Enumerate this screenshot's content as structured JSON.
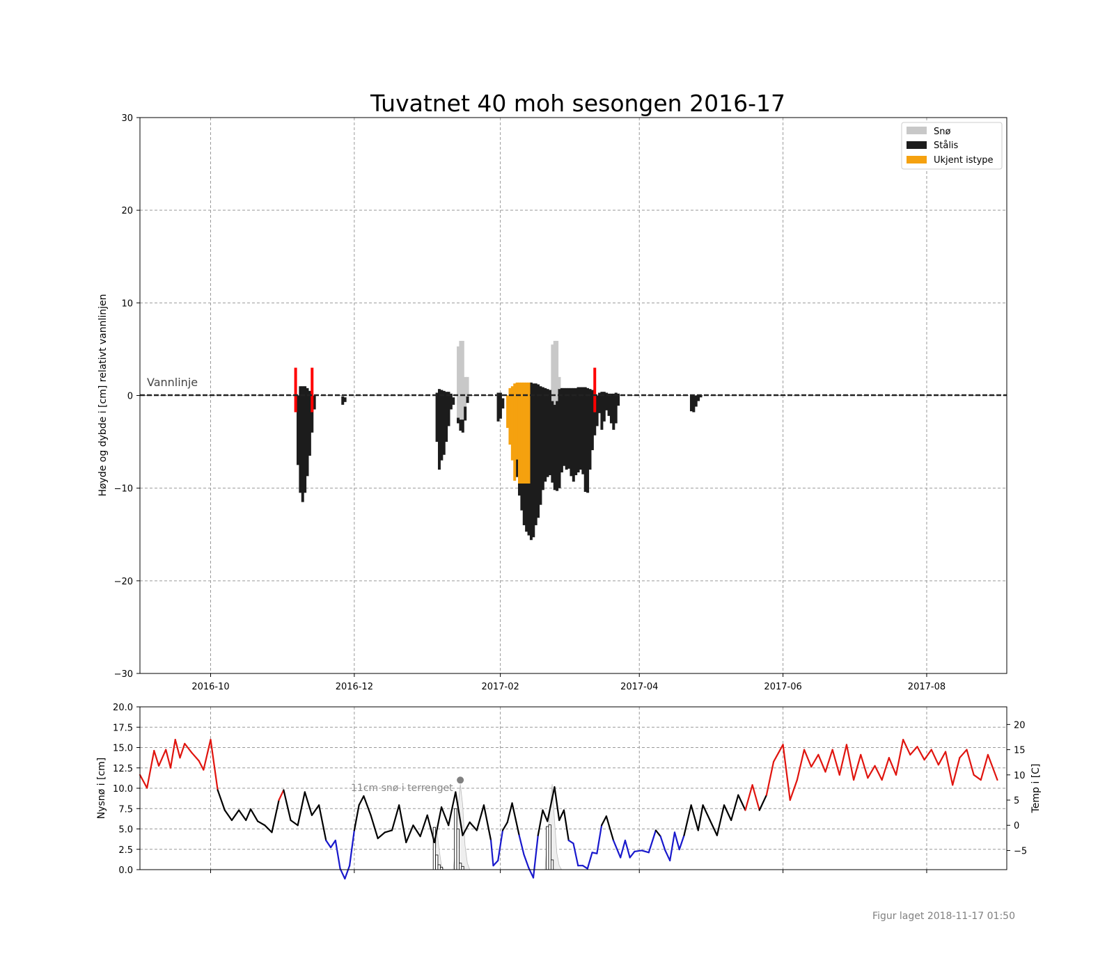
{
  "title": "Tuvatnet 40 moh sesongen 2016-17",
  "footer": "Figur laget 2018-11-17 01:50",
  "colors": {
    "snow": "#c8c8c8",
    "ice": "#1c1c1c",
    "unknown": "#f5a10f",
    "slush": "#ff0000",
    "temp_warm": "#e0140e",
    "temp_cold": "#1818cc",
    "temp_mid": "#000000",
    "grid": "#999999"
  },
  "chart_data": [
    {
      "type": "bar",
      "ylabel": "Høyde og dybde i [cm] relativt vannlinjen",
      "ylim": [
        -30,
        30
      ],
      "yticks": [
        30,
        20,
        10,
        0,
        -10,
        -20,
        -30
      ],
      "ytick_labels": [
        "30",
        "20",
        "10",
        "0",
        "−10",
        "−20",
        "−30"
      ],
      "xlim": [
        "2016-09-01",
        "2017-09-04"
      ],
      "xticks": [
        "2016-10-01",
        "2016-12-01",
        "2017-02-01",
        "2017-04-01",
        "2017-06-01",
        "2017-08-01"
      ],
      "xtick_labels": [
        "2016-10",
        "2016-12",
        "2017-02",
        "2017-04",
        "2017-06",
        "2017-08"
      ],
      "annotation": "Vannlinje",
      "legend": {
        "position": "top-right",
        "items": [
          {
            "label": "Snø",
            "color": "#c8c8c8"
          },
          {
            "label": "Stålis",
            "color": "#1c1c1c"
          },
          {
            "label": "Ukjent istype",
            "color": "#f5a10f"
          }
        ]
      },
      "grid": true,
      "ice": [
        [
          "2016-11-07",
          0.0,
          -7.5
        ],
        [
          "2016-11-08",
          1.0,
          -10.5
        ],
        [
          "2016-11-09",
          1.0,
          -11.5
        ],
        [
          "2016-11-10",
          1.0,
          -10.5
        ],
        [
          "2016-11-11",
          0.8,
          -8.7
        ],
        [
          "2016-11-12",
          0.5,
          -6.5
        ],
        [
          "2016-11-13",
          0.0,
          -4.0
        ],
        [
          "2016-11-14",
          0.0,
          -1.5
        ],
        [
          "2016-11-26",
          -0.1,
          -1.0
        ],
        [
          "2016-11-27",
          -0.2,
          -0.7
        ],
        [
          "2017-01-05",
          0.3,
          -5.0
        ],
        [
          "2017-01-06",
          0.7,
          -8.0
        ],
        [
          "2017-01-07",
          0.6,
          -7.0
        ],
        [
          "2017-01-08",
          0.5,
          -6.4
        ],
        [
          "2017-01-09",
          0.4,
          -5.0
        ],
        [
          "2017-01-10",
          0.4,
          -3.3
        ],
        [
          "2017-01-11",
          0.2,
          -1.5
        ],
        [
          "2017-01-12",
          -0.2,
          -1.0
        ],
        [
          "2017-01-14",
          -2.4,
          -3.0
        ],
        [
          "2017-01-15",
          -2.6,
          -3.8
        ],
        [
          "2017-01-16",
          -2.6,
          -4.0
        ],
        [
          "2017-01-17",
          -1.2,
          -2.7
        ],
        [
          "2017-01-18",
          -0.1,
          -0.8
        ],
        [
          "2017-01-31",
          0.3,
          -2.8
        ],
        [
          "2017-02-01",
          0.3,
          -2.5
        ],
        [
          "2017-02-02",
          -0.3,
          -1.4
        ],
        [
          "2017-02-08",
          -6.9,
          -8.8
        ],
        [
          "2017-02-09",
          -9.5,
          -10.8
        ],
        [
          "2017-02-10",
          -9.5,
          -12.4
        ],
        [
          "2017-02-11",
          -9.5,
          -14.0
        ],
        [
          "2017-02-12",
          -9.5,
          -14.7
        ],
        [
          "2017-02-13",
          -9.5,
          -15.1
        ],
        [
          "2017-02-14",
          1.4,
          -15.6
        ],
        [
          "2017-02-15",
          1.3,
          -15.3
        ],
        [
          "2017-02-16",
          1.3,
          -14.0
        ],
        [
          "2017-02-17",
          1.2,
          -13.2
        ],
        [
          "2017-02-18",
          1.0,
          -11.8
        ],
        [
          "2017-02-19",
          0.9,
          -10.2
        ],
        [
          "2017-02-20",
          0.8,
          -9.3
        ],
        [
          "2017-02-21",
          0.7,
          -8.8
        ],
        [
          "2017-02-22",
          0.6,
          -8.6
        ],
        [
          "2017-02-23",
          -0.6,
          -9.4
        ],
        [
          "2017-02-24",
          -1.0,
          -10.2
        ],
        [
          "2017-02-25",
          -0.6,
          -10.3
        ],
        [
          "2017-02-26",
          0.7,
          -10.0
        ],
        [
          "2017-02-27",
          0.8,
          -8.3
        ],
        [
          "2017-02-28",
          0.8,
          -7.6
        ],
        [
          "2017-03-01",
          0.8,
          -8.0
        ],
        [
          "2017-03-02",
          0.8,
          -7.9
        ],
        [
          "2017-03-03",
          0.8,
          -8.7
        ],
        [
          "2017-03-04",
          0.8,
          -9.3
        ],
        [
          "2017-03-05",
          0.8,
          -8.6
        ],
        [
          "2017-03-06",
          0.9,
          -8.3
        ],
        [
          "2017-03-07",
          0.9,
          -8.0
        ],
        [
          "2017-03-08",
          0.9,
          -8.5
        ],
        [
          "2017-03-09",
          0.9,
          -10.4
        ],
        [
          "2017-03-10",
          0.8,
          -10.5
        ],
        [
          "2017-03-11",
          0.7,
          -8.0
        ],
        [
          "2017-03-12",
          0.6,
          -5.9
        ],
        [
          "2017-03-13",
          -1.8,
          -4.3
        ],
        [
          "2017-03-14",
          0.0,
          -3.3
        ],
        [
          "2017-03-15",
          0.3,
          -1.9
        ],
        [
          "2017-03-16",
          0.4,
          -3.7
        ],
        [
          "2017-03-17",
          0.4,
          -2.8
        ],
        [
          "2017-03-18",
          0.3,
          -1.6
        ],
        [
          "2017-03-19",
          0.2,
          -2.2
        ],
        [
          "2017-03-20",
          0.2,
          -3.0
        ],
        [
          "2017-03-21",
          0.2,
          -3.7
        ],
        [
          "2017-03-22",
          0.3,
          -3.0
        ],
        [
          "2017-03-23",
          0.2,
          -1.1
        ],
        [
          "2017-04-23",
          0.0,
          -1.7
        ],
        [
          "2017-04-24",
          0.0,
          -1.8
        ],
        [
          "2017-04-25",
          0.0,
          -1.2
        ],
        [
          "2017-04-26",
          0.0,
          -0.6
        ],
        [
          "2017-04-27",
          0.0,
          -0.2
        ]
      ],
      "unknown": [
        [
          "2017-02-04",
          0.0,
          -3.5
        ],
        [
          "2017-02-05",
          0.8,
          -5.3
        ],
        [
          "2017-02-06",
          1.0,
          -7.0
        ],
        [
          "2017-02-07",
          1.3,
          -9.2
        ],
        [
          "2017-02-08",
          1.4,
          -6.9
        ],
        [
          "2017-02-09",
          1.4,
          -9.5
        ],
        [
          "2017-02-10",
          1.4,
          -9.5
        ],
        [
          "2017-02-11",
          1.4,
          -9.5
        ],
        [
          "2017-02-12",
          1.4,
          -9.5
        ],
        [
          "2017-02-13",
          1.4,
          -9.5
        ]
      ],
      "snow": [
        [
          "2017-01-14",
          5.3,
          -2.4
        ],
        [
          "2017-01-15",
          5.9,
          -2.6
        ],
        [
          "2017-01-16",
          5.9,
          -2.6
        ],
        [
          "2017-01-17",
          2.0,
          -1.2
        ],
        [
          "2017-01-18",
          2.0,
          -0.1
        ],
        [
          "2017-02-23",
          5.5,
          -0.6
        ],
        [
          "2017-02-24",
          5.9,
          -1.0
        ],
        [
          "2017-02-25",
          5.9,
          -0.6
        ],
        [
          "2017-02-26",
          2.0,
          0.7
        ]
      ],
      "slush_markers": [
        [
          "2016-11-06",
          3.0,
          -1.8
        ],
        [
          "2016-11-13",
          3.0,
          -1.8
        ],
        [
          "2017-03-13",
          3.0,
          -1.8
        ]
      ]
    },
    {
      "type": "line",
      "ylabel": "Nysnø i [cm]",
      "ylabel_right": "Temp i [C]",
      "ylim": [
        0,
        20
      ],
      "yticks": [
        0,
        2.5,
        5,
        7.5,
        10,
        12.5,
        15,
        17.5,
        20
      ],
      "ytick_labels": [
        "0.0",
        "2.5",
        "5.0",
        "7.5",
        "10.0",
        "12.5",
        "15.0",
        "17.5",
        "20.0"
      ],
      "ylim_right": [
        -8.8,
        23.5
      ],
      "yticks_right": [
        -5,
        0,
        5,
        10,
        15,
        20
      ],
      "ytick_labels_right": [
        "−5",
        "0",
        "5",
        "10",
        "15",
        "20"
      ],
      "annotation": "11cm snø i terrenget",
      "annotation_point": [
        "2017-01-15",
        11
      ],
      "temperature_knots": [
        [
          "2016-09-01",
          12.5
        ],
        [
          "2016-09-04",
          11.2
        ],
        [
          "2016-09-07",
          14.9
        ],
        [
          "2016-09-09",
          13.4
        ],
        [
          "2016-09-12",
          15.0
        ],
        [
          "2016-09-14",
          13.2
        ],
        [
          "2016-09-16",
          16.0
        ],
        [
          "2016-09-18",
          14.2
        ],
        [
          "2016-09-20",
          15.6
        ],
        [
          "2016-09-23",
          14.7
        ],
        [
          "2016-09-26",
          13.9
        ],
        [
          "2016-09-28",
          13.0
        ],
        [
          "2016-10-01",
          16.0
        ],
        [
          "2016-10-04",
          11.0
        ],
        [
          "2016-10-07",
          9.0
        ],
        [
          "2016-10-10",
          8.0
        ],
        [
          "2016-10-13",
          9.0
        ],
        [
          "2016-10-16",
          8.0
        ],
        [
          "2016-10-18",
          9.1
        ],
        [
          "2016-10-21",
          7.9
        ],
        [
          "2016-10-24",
          7.5
        ],
        [
          "2016-10-27",
          6.8
        ],
        [
          "2016-10-30",
          10.0
        ],
        [
          "2016-11-01",
          11.0
        ],
        [
          "2016-11-04",
          8.0
        ],
        [
          "2016-11-07",
          7.5
        ],
        [
          "2016-11-10",
          10.8
        ],
        [
          "2016-11-13",
          8.5
        ],
        [
          "2016-11-16",
          9.5
        ],
        [
          "2016-11-19",
          6.0
        ],
        [
          "2016-11-21",
          5.3
        ],
        [
          "2016-11-23",
          6.0
        ],
        [
          "2016-11-25",
          3.2
        ],
        [
          "2016-11-27",
          2.2
        ],
        [
          "2016-11-29",
          3.5
        ],
        [
          "2016-12-01",
          7.0
        ],
        [
          "2016-12-03",
          9.5
        ],
        [
          "2016-12-05",
          10.4
        ],
        [
          "2016-12-08",
          8.5
        ],
        [
          "2016-12-11",
          6.2
        ],
        [
          "2016-12-14",
          6.8
        ],
        [
          "2016-12-17",
          7.0
        ],
        [
          "2016-12-20",
          9.5
        ],
        [
          "2016-12-23",
          5.8
        ],
        [
          "2016-12-26",
          7.5
        ],
        [
          "2016-12-29",
          6.4
        ],
        [
          "2017-01-01",
          8.5
        ],
        [
          "2017-01-04",
          5.8
        ],
        [
          "2017-01-07",
          9.3
        ],
        [
          "2017-01-10",
          7.5
        ],
        [
          "2017-01-13",
          10.8
        ],
        [
          "2017-01-16",
          6.5
        ],
        [
          "2017-01-19",
          7.8
        ],
        [
          "2017-01-22",
          7.0
        ],
        [
          "2017-01-25",
          9.5
        ],
        [
          "2017-01-28",
          6.0
        ],
        [
          "2017-01-29",
          3.5
        ],
        [
          "2017-01-31",
          4.0
        ],
        [
          "2017-02-02",
          7.0
        ],
        [
          "2017-02-04",
          7.8
        ],
        [
          "2017-02-06",
          9.7
        ],
        [
          "2017-02-09",
          6.5
        ],
        [
          "2017-02-11",
          4.6
        ],
        [
          "2017-02-13",
          3.3
        ],
        [
          "2017-02-15",
          2.3
        ],
        [
          "2017-02-17",
          6.5
        ],
        [
          "2017-02-19",
          9.0
        ],
        [
          "2017-02-21",
          7.9
        ],
        [
          "2017-02-24",
          11.3
        ],
        [
          "2017-02-26",
          8.0
        ],
        [
          "2017-02-28",
          9.0
        ],
        [
          "2017-03-02",
          6.0
        ],
        [
          "2017-03-04",
          5.7
        ],
        [
          "2017-03-06",
          3.5
        ],
        [
          "2017-03-08",
          3.5
        ],
        [
          "2017-03-10",
          3.2
        ],
        [
          "2017-03-12",
          4.8
        ],
        [
          "2017-03-14",
          4.7
        ],
        [
          "2017-03-16",
          7.5
        ],
        [
          "2017-03-18",
          8.4
        ],
        [
          "2017-03-21",
          6.0
        ],
        [
          "2017-03-24",
          4.3
        ],
        [
          "2017-03-26",
          6.0
        ],
        [
          "2017-03-28",
          4.3
        ],
        [
          "2017-03-30",
          4.9
        ],
        [
          "2017-04-02",
          5.0
        ],
        [
          "2017-04-05",
          4.8
        ],
        [
          "2017-04-08",
          7.0
        ],
        [
          "2017-04-10",
          6.4
        ],
        [
          "2017-04-12",
          5.0
        ],
        [
          "2017-04-14",
          4.0
        ],
        [
          "2017-04-16",
          6.8
        ],
        [
          "2017-04-18",
          5.1
        ],
        [
          "2017-04-20",
          6.5
        ],
        [
          "2017-04-23",
          9.5
        ],
        [
          "2017-04-26",
          7.0
        ],
        [
          "2017-04-28",
          9.5
        ],
        [
          "2017-05-01",
          8.0
        ],
        [
          "2017-05-04",
          6.5
        ],
        [
          "2017-05-07",
          9.5
        ],
        [
          "2017-05-10",
          8.0
        ],
        [
          "2017-05-13",
          10.5
        ],
        [
          "2017-05-16",
          9.0
        ],
        [
          "2017-05-19",
          11.5
        ],
        [
          "2017-05-22",
          9.0
        ],
        [
          "2017-05-25",
          10.5
        ],
        [
          "2017-05-28",
          13.8
        ],
        [
          "2017-06-01",
          15.5
        ],
        [
          "2017-06-04",
          10.0
        ],
        [
          "2017-06-07",
          12.0
        ],
        [
          "2017-06-10",
          15.0
        ],
        [
          "2017-06-13",
          13.3
        ],
        [
          "2017-06-16",
          14.5
        ],
        [
          "2017-06-19",
          12.8
        ],
        [
          "2017-06-22",
          15.0
        ],
        [
          "2017-06-25",
          12.5
        ],
        [
          "2017-06-28",
          15.5
        ],
        [
          "2017-07-01",
          12.0
        ],
        [
          "2017-07-04",
          14.5
        ],
        [
          "2017-07-07",
          12.2
        ],
        [
          "2017-07-10",
          13.4
        ],
        [
          "2017-07-13",
          12.0
        ],
        [
          "2017-07-16",
          14.2
        ],
        [
          "2017-07-19",
          12.5
        ],
        [
          "2017-07-22",
          16.0
        ],
        [
          "2017-07-25",
          14.5
        ],
        [
          "2017-07-28",
          15.3
        ],
        [
          "2017-07-31",
          14.0
        ],
        [
          "2017-08-03",
          15.0
        ],
        [
          "2017-08-06",
          13.5
        ],
        [
          "2017-08-09",
          14.8
        ],
        [
          "2017-08-12",
          11.5
        ],
        [
          "2017-08-15",
          14.2
        ],
        [
          "2017-08-18",
          15.0
        ],
        [
          "2017-08-21",
          12.5
        ],
        [
          "2017-08-24",
          12.0
        ],
        [
          "2017-08-27",
          14.5
        ],
        [
          "2017-08-31",
          12.0
        ]
      ],
      "snow_area": [
        [
          "2017-01-04",
          0.0
        ],
        [
          "2017-01-05",
          5.0
        ],
        [
          "2017-01-06",
          2.5
        ],
        [
          "2017-01-07",
          0.5
        ],
        [
          "2017-01-08",
          0.0
        ],
        [
          "2017-01-12",
          0.0
        ],
        [
          "2017-01-13",
          2.5
        ],
        [
          "2017-01-14",
          7.5
        ],
        [
          "2017-01-15",
          10.5
        ],
        [
          "2017-01-16",
          8.0
        ],
        [
          "2017-01-17",
          3.0
        ],
        [
          "2017-01-18",
          0.8
        ],
        [
          "2017-01-19",
          0.0
        ],
        [
          "2017-02-20",
          0.0
        ],
        [
          "2017-02-21",
          4.0
        ],
        [
          "2017-02-22",
          7.0
        ],
        [
          "2017-02-23",
          10.5
        ],
        [
          "2017-02-24",
          6.0
        ],
        [
          "2017-02-25",
          2.0
        ],
        [
          "2017-02-26",
          0.5
        ],
        [
          "2017-02-27",
          0.0
        ]
      ],
      "new_snow_bars": [
        [
          "2017-01-04",
          5.2
        ],
        [
          "2017-01-05",
          1.8
        ],
        [
          "2017-01-06",
          0.6
        ],
        [
          "2017-01-07",
          0.3
        ],
        [
          "2017-01-13",
          7.5
        ],
        [
          "2017-01-14",
          5.0
        ],
        [
          "2017-01-15",
          0.8
        ],
        [
          "2017-01-16",
          0.4
        ],
        [
          "2017-02-21",
          5.3
        ],
        [
          "2017-02-22",
          5.5
        ],
        [
          "2017-02-23",
          1.2
        ]
      ]
    }
  ]
}
